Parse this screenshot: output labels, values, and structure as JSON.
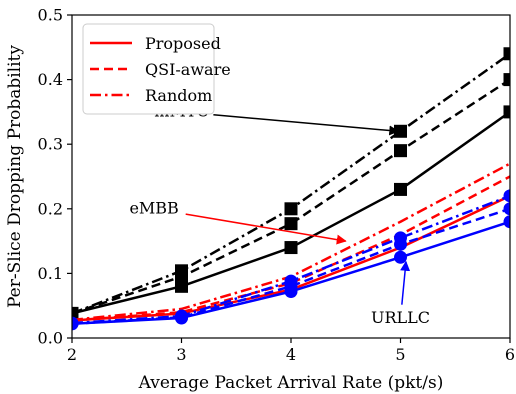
{
  "chart_data": {
    "type": "line",
    "xlabel": "Average Packet Arrival Rate (pkt/s)",
    "ylabel": "Per-Slice Dropping Probability",
    "xlim": [
      2,
      6
    ],
    "ylim": [
      0,
      0.5
    ],
    "xticks": [
      2,
      3,
      4,
      5,
      6
    ],
    "yticks": [
      0.0,
      0.1,
      0.2,
      0.3,
      0.4,
      0.5
    ],
    "xtick_labels": [
      "2",
      "3",
      "4",
      "5",
      "6"
    ],
    "ytick_labels": [
      "0.0",
      "0.1",
      "0.2",
      "0.3",
      "0.4",
      "0.5"
    ],
    "grid": false,
    "legend_position": "top-left",
    "legend": [
      {
        "label": "Proposed",
        "style": "solid",
        "color": "#ff0000"
      },
      {
        "label": "QSI-aware",
        "style": "dashed",
        "color": "#ff0000"
      },
      {
        "label": "Random",
        "style": "dashdot",
        "color": "#ff0000"
      }
    ],
    "series": [
      {
        "slice": "mMTC",
        "method": "Proposed",
        "style": "solid",
        "color": "#000000",
        "marker": "square",
        "x": [
          2,
          3,
          4,
          5,
          6
        ],
        "y": [
          0.038,
          0.08,
          0.14,
          0.23,
          0.35
        ]
      },
      {
        "slice": "mMTC",
        "method": "QSI-aware",
        "style": "dashed",
        "color": "#000000",
        "marker": "square",
        "x": [
          2,
          3,
          4,
          5,
          6
        ],
        "y": [
          0.038,
          0.095,
          0.177,
          0.29,
          0.4
        ]
      },
      {
        "slice": "mMTC",
        "method": "Random",
        "style": "dashdot",
        "color": "#000000",
        "marker": "square",
        "x": [
          2,
          3,
          4,
          5,
          6
        ],
        "y": [
          0.038,
          0.104,
          0.2,
          0.32,
          0.44
        ]
      },
      {
        "slice": "eMBB",
        "method": "Proposed",
        "style": "solid",
        "color": "#ff0000",
        "marker": "none",
        "x": [
          2,
          3,
          4,
          5,
          6
        ],
        "y": [
          0.027,
          0.038,
          0.075,
          0.14,
          0.22
        ]
      },
      {
        "slice": "eMBB",
        "method": "QSI-aware",
        "style": "dashed",
        "color": "#ff0000",
        "marker": "none",
        "x": [
          2,
          3,
          4,
          5,
          6
        ],
        "y": [
          0.027,
          0.04,
          0.085,
          0.16,
          0.25
        ]
      },
      {
        "slice": "eMBB",
        "method": "Random",
        "style": "dashdot",
        "color": "#ff0000",
        "marker": "none",
        "x": [
          2,
          3,
          4,
          5,
          6
        ],
        "y": [
          0.028,
          0.045,
          0.095,
          0.18,
          0.27
        ]
      },
      {
        "slice": "URLLC",
        "method": "Proposed",
        "style": "solid",
        "color": "#0000ff",
        "marker": "circle",
        "x": [
          2,
          3,
          4,
          5,
          6
        ],
        "y": [
          0.022,
          0.031,
          0.072,
          0.125,
          0.18
        ]
      },
      {
        "slice": "URLLC",
        "method": "QSI-aware",
        "style": "dashed",
        "color": "#0000ff",
        "marker": "circle",
        "x": [
          2,
          3,
          4,
          5,
          6
        ],
        "y": [
          0.022,
          0.032,
          0.08,
          0.145,
          0.2
        ]
      },
      {
        "slice": "URLLC",
        "method": "Random",
        "style": "dashdot",
        "color": "#0000ff",
        "marker": "circle",
        "x": [
          2,
          3,
          4,
          5,
          6
        ],
        "y": [
          0.023,
          0.034,
          0.088,
          0.155,
          0.22
        ]
      }
    ],
    "annotations": [
      {
        "text": "mMTC",
        "text_at": [
          3.0,
          0.35
        ],
        "arrow_to": [
          4.98,
          0.32
        ],
        "color": "#000000"
      },
      {
        "text": "eMBB",
        "text_at": [
          2.75,
          0.2
        ],
        "arrow_to": [
          4.5,
          0.15
        ],
        "color": "#ff0000"
      },
      {
        "text": "URLLC",
        "text_at": [
          5.0,
          0.03
        ],
        "arrow_to": [
          5.05,
          0.118
        ],
        "color": "#0000ff"
      }
    ]
  }
}
